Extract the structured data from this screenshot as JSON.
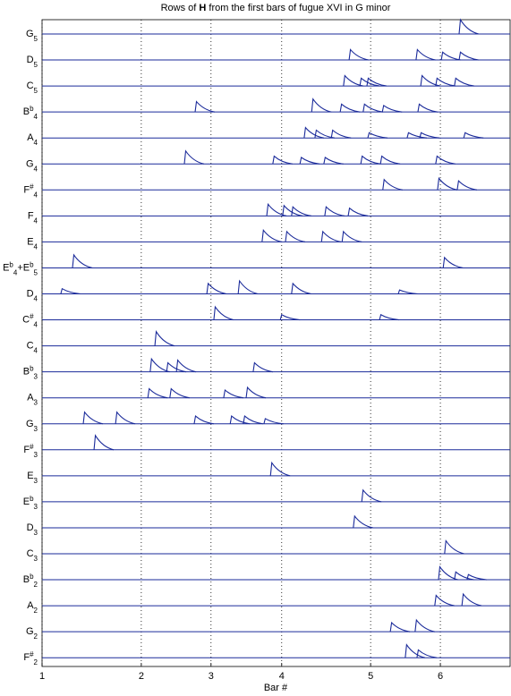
{
  "chart_data": {
    "type": "line",
    "title": [
      "Rows of ",
      "H",
      " from the first bars of fugue XVI in G minor"
    ],
    "x_label": "Bar #",
    "xlim": [
      0,
      100
    ],
    "xticks": [
      {
        "value": 0,
        "label": "1"
      },
      {
        "value": 21.2,
        "label": "2"
      },
      {
        "value": 36.1,
        "label": "3"
      },
      {
        "value": 51.2,
        "label": "4"
      },
      {
        "value": 70.2,
        "label": "5"
      },
      {
        "value": 85.1,
        "label": "6"
      }
    ],
    "ylim": [
      0,
      1
    ],
    "grid": true,
    "color": "#1a2a9a",
    "series": [
      {
        "label": [
          [
            "G",
            "base"
          ],
          [
            "5",
            "sub"
          ]
        ],
        "x": [
          89.1
        ],
        "values": [
          0.55
        ]
      },
      {
        "label": [
          [
            "D",
            "base"
          ],
          [
            "5",
            "sub"
          ]
        ],
        "x": [
          65.6,
          79.9,
          85.3,
          89.1
        ],
        "values": [
          0.4,
          0.4,
          0.3,
          0.3
        ]
      },
      {
        "label": [
          [
            "C",
            "base"
          ],
          [
            "5",
            "sub"
          ]
        ],
        "x": [
          64.4,
          67.9,
          69.4,
          80.9,
          84.1,
          88.1
        ],
        "values": [
          0.4,
          0.3,
          0.3,
          0.4,
          0.3,
          0.3
        ]
      },
      {
        "label": [
          [
            "B",
            "base"
          ],
          [
            "b",
            "sup"
          ],
          [
            "4",
            "sub"
          ]
        ],
        "x": [
          32.7,
          57.6,
          63.7,
          68.6,
          72.7,
          80.3
        ],
        "values": [
          0.4,
          0.5,
          0.3,
          0.3,
          0.25,
          0.3
        ]
      },
      {
        "label": [
          [
            "A",
            "base"
          ],
          [
            "4",
            "sub"
          ]
        ],
        "x": [
          56.0,
          58.3,
          61.8,
          69.6,
          78.0,
          80.7,
          90.1
        ],
        "values": [
          0.4,
          0.3,
          0.3,
          0.2,
          0.2,
          0.2,
          0.2
        ]
      },
      {
        "label": [
          [
            "G",
            "base"
          ],
          [
            "4",
            "sub"
          ]
        ],
        "x": [
          30.4,
          49.3,
          55.1,
          60.2,
          68.1,
          72.3,
          84.1
        ],
        "values": [
          0.5,
          0.3,
          0.25,
          0.25,
          0.3,
          0.3,
          0.3
        ]
      },
      {
        "label": [
          [
            "F",
            "base"
          ],
          [
            "#",
            "sup"
          ],
          [
            "4",
            "sub"
          ]
        ],
        "x": [
          72.8,
          84.5,
          88.7
        ],
        "values": [
          0.4,
          0.45,
          0.35
        ]
      },
      {
        "label": [
          [
            "F",
            "base"
          ],
          [
            "4",
            "sub"
          ]
        ],
        "x": [
          48.0,
          51.4,
          53.3,
          60.4,
          65.4
        ],
        "values": [
          0.45,
          0.4,
          0.35,
          0.35,
          0.3
        ]
      },
      {
        "label": [
          [
            "E",
            "base"
          ],
          [
            "4",
            "sub"
          ]
        ],
        "x": [
          47.0,
          52.0,
          59.7,
          64.1
        ],
        "values": [
          0.45,
          0.4,
          0.4,
          0.4
        ]
      },
      {
        "label": [
          [
            "E",
            "base"
          ],
          [
            "b",
            "sup"
          ],
          [
            "4",
            "sub"
          ],
          [
            "+E",
            "base"
          ],
          [
            "b",
            "sup"
          ],
          [
            "5",
            "sub"
          ]
        ],
        "x": [
          6.5,
          85.7
        ],
        "values": [
          0.5,
          0.4
        ]
      },
      {
        "label": [
          [
            "D",
            "base"
          ],
          [
            "4",
            "sub"
          ]
        ],
        "x": [
          4.0,
          35.2,
          41.9,
          53.3,
          76.1
        ],
        "values": [
          0.2,
          0.4,
          0.5,
          0.4,
          0.15
        ]
      },
      {
        "label": [
          [
            "C",
            "base"
          ],
          [
            "#",
            "sup"
          ],
          [
            "4",
            "sub"
          ]
        ],
        "x": [
          36.7,
          50.9,
          72.1
        ],
        "values": [
          0.5,
          0.2,
          0.2
        ]
      },
      {
        "label": [
          [
            "C",
            "base"
          ],
          [
            "4",
            "sub"
          ]
        ],
        "x": [
          24.1
        ],
        "values": [
          0.55
        ]
      },
      {
        "label": [
          [
            "B",
            "base"
          ],
          [
            "b",
            "sup"
          ],
          [
            "3",
            "sub"
          ]
        ],
        "x": [
          23.1,
          26.6,
          28.7,
          45.1
        ],
        "values": [
          0.5,
          0.35,
          0.45,
          0.35
        ]
      },
      {
        "label": [
          [
            "A",
            "base"
          ],
          [
            "3",
            "sub"
          ]
        ],
        "x": [
          22.6,
          27.3,
          38.8,
          43.6
        ],
        "values": [
          0.35,
          0.35,
          0.3,
          0.4
        ]
      },
      {
        "label": [
          [
            "G",
            "base"
          ],
          [
            "3",
            "sub"
          ]
        ],
        "x": [
          8.8,
          15.7,
          32.5,
          40.2,
          43.0,
          47.4
        ],
        "values": [
          0.45,
          0.45,
          0.3,
          0.3,
          0.3,
          0.2
        ]
      },
      {
        "label": [
          [
            "F",
            "base"
          ],
          [
            "#",
            "sup"
          ],
          [
            "3",
            "sub"
          ]
        ],
        "x": [
          11.1
        ],
        "values": [
          0.55
        ]
      },
      {
        "label": [
          [
            "E",
            "base"
          ],
          [
            "3",
            "sub"
          ]
        ],
        "x": [
          48.8
        ],
        "values": [
          0.5
        ]
      },
      {
        "label": [
          [
            "E",
            "base"
          ],
          [
            "b",
            "sup"
          ],
          [
            "3",
            "sub"
          ]
        ],
        "x": [
          68.3
        ],
        "values": [
          0.45
        ]
      },
      {
        "label": [
          [
            "D",
            "base"
          ],
          [
            "3",
            "sub"
          ]
        ],
        "x": [
          66.5
        ],
        "values": [
          0.45
        ]
      },
      {
        "label": [
          [
            "C",
            "base"
          ],
          [
            "3",
            "sub"
          ]
        ],
        "x": [
          86.0
        ],
        "values": [
          0.5
        ]
      },
      {
        "label": [
          [
            "B",
            "base"
          ],
          [
            "b",
            "sup"
          ],
          [
            "2",
            "sub"
          ]
        ],
        "x": [
          84.7,
          88.1,
          90.8
        ],
        "values": [
          0.5,
          0.3,
          0.2
        ]
      },
      {
        "label": [
          [
            "A",
            "base"
          ],
          [
            "2",
            "sub"
          ]
        ],
        "x": [
          83.9,
          89.7
        ],
        "values": [
          0.4,
          0.45
        ]
      },
      {
        "label": [
          [
            "G",
            "base"
          ],
          [
            "2",
            "sub"
          ]
        ],
        "x": [
          74.4,
          79.7
        ],
        "values": [
          0.35,
          0.45
        ]
      },
      {
        "label": [
          [
            "F",
            "base"
          ],
          [
            "#",
            "sup"
          ],
          [
            "2",
            "sub"
          ]
        ],
        "x": [
          77.6,
          80.1
        ],
        "values": [
          0.5,
          0.3
        ]
      }
    ]
  }
}
